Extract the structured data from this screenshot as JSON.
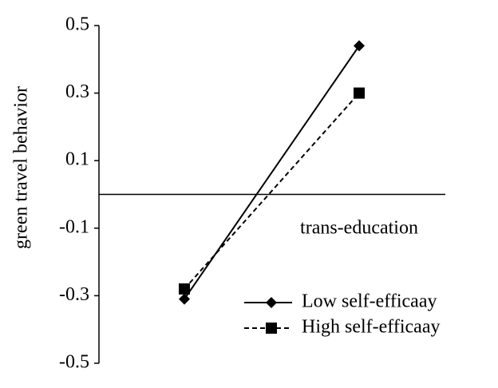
{
  "chart_data": {
    "type": "line",
    "x_label": "trans-education",
    "y_label": "green travel behavior",
    "categories": [
      null,
      null
    ],
    "series": [
      {
        "name": "Low self-efficaay",
        "color": "#000000",
        "line_style": "solid",
        "marker": "diamond",
        "values": [
          -0.31,
          0.44
        ]
      },
      {
        "name": "High self-efficaay",
        "color": "#000000",
        "line_style": "dashed",
        "marker": "square",
        "values": [
          -0.28,
          0.3
        ]
      }
    ],
    "ylim": [
      -0.5,
      0.5
    ],
    "yticks": [
      -0.5,
      -0.3,
      -0.1,
      0.1,
      0.3,
      0.5
    ],
    "grid": false,
    "legend": "lower right"
  }
}
